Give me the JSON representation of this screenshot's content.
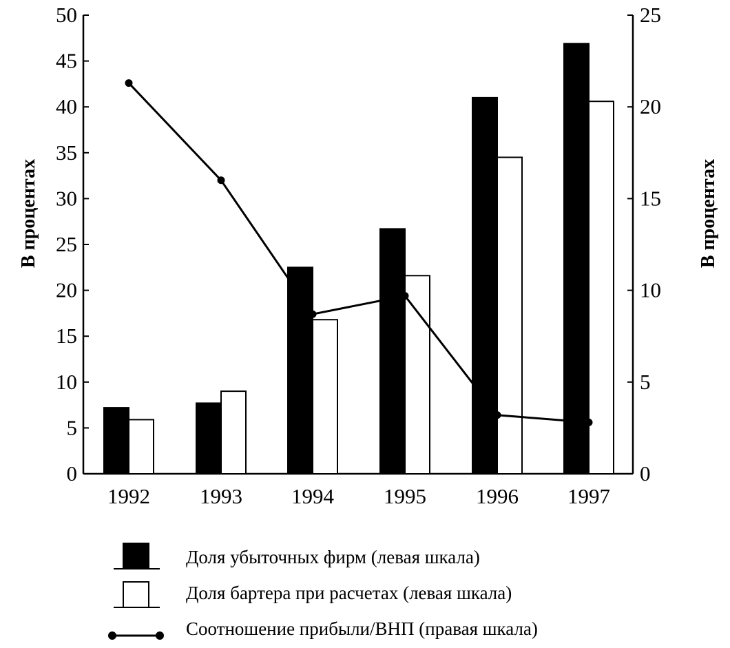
{
  "chart_data": {
    "type": "bar",
    "categories": [
      "1992",
      "1993",
      "1994",
      "1995",
      "1996",
      "1997"
    ],
    "series": [
      {
        "name": "Доля убыточных фирм (левая шкала)",
        "kind": "bar",
        "axis": "left",
        "fill": "#000000",
        "values": [
          7.2,
          7.7,
          22.5,
          26.7,
          41.0,
          46.9
        ]
      },
      {
        "name": "Доля бартера при расчетах (левая шкала)",
        "kind": "bar",
        "axis": "left",
        "fill": "#ffffff",
        "values": [
          5.9,
          9.0,
          16.8,
          21.6,
          34.5,
          40.6
        ]
      },
      {
        "name": "Соотношение прибыли/ВНП (правая шкала)",
        "kind": "line",
        "axis": "right",
        "values": [
          21.3,
          16.0,
          8.7,
          9.7,
          3.2,
          2.8
        ]
      }
    ],
    "y_left": {
      "label": "В процентах",
      "range": [
        0,
        50
      ],
      "ticks": [
        "0",
        "5",
        "10",
        "15",
        "20",
        "25",
        "30",
        "35",
        "40",
        "45",
        "50"
      ]
    },
    "y_right": {
      "label": "В процентах",
      "range": [
        0,
        25
      ],
      "ticks": [
        "0",
        "5",
        "10",
        "15",
        "20",
        "25"
      ]
    },
    "legend_position": "bottom",
    "grid": false
  }
}
